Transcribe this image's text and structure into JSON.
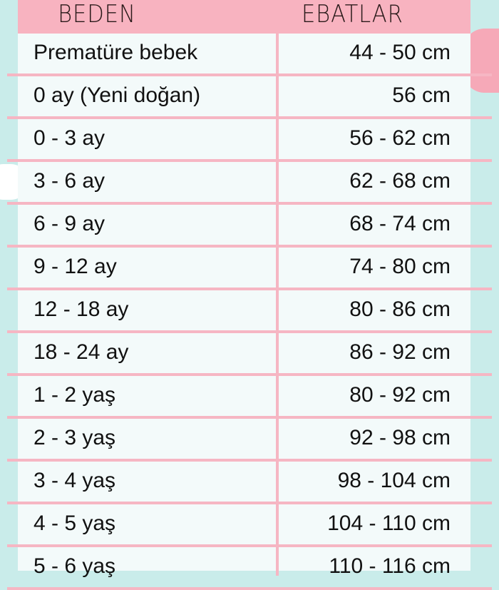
{
  "headers": {
    "size": "BEDEN",
    "measure": "EBATLAR"
  },
  "rows": [
    {
      "size": "Prematüre bebek",
      "measure": "44 - 50 cm"
    },
    {
      "size": "0 ay (Yeni doğan)",
      "measure": "56 cm"
    },
    {
      "size": "0 - 3 ay",
      "measure": "56 - 62 cm"
    },
    {
      "size": "3 - 6 ay",
      "measure": "62 - 68 cm"
    },
    {
      "size": "6 - 9 ay",
      "measure": "68 - 74 cm"
    },
    {
      "size": "9 - 12 ay",
      "measure": "74 - 80 cm"
    },
    {
      "size": "12 - 18 ay",
      "measure": "80 - 86 cm"
    },
    {
      "size": "18 - 24 ay",
      "measure": "86 - 92 cm"
    },
    {
      "size": "1 - 2 yaş",
      "measure": "80 - 92 cm"
    },
    {
      "size": "2 - 3 yaş",
      "measure": "92 - 98 cm"
    },
    {
      "size": "3 - 4 yaş",
      "measure": "98 - 104 cm"
    },
    {
      "size": "4 - 5 yaş",
      "measure": "104 - 110 cm"
    },
    {
      "size": "5 - 6 yaş",
      "measure": "110 - 116 cm"
    }
  ],
  "colors": {
    "header": "#f8b3c0",
    "background": "#c9ecea",
    "lines": "#f6b6c3"
  }
}
